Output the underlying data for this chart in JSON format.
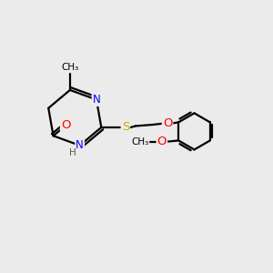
{
  "bg_color": "#ebebeb",
  "bond_color": "#000000",
  "bond_width": 1.6,
  "atom_colors": {
    "N": "#0000ff",
    "O": "#ff0000",
    "S": "#ccaa00",
    "C": "#000000",
    "H": "#555555"
  },
  "font_size": 8.5,
  "figsize": [
    3.0,
    3.0
  ],
  "dpi": 100
}
